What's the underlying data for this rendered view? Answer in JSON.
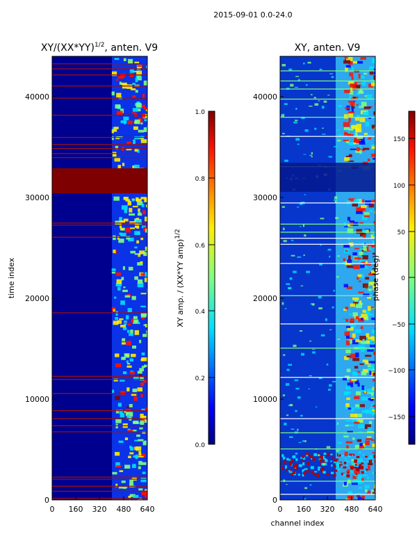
{
  "figure": {
    "suptitle": "2015-09-01 0.0-24.0"
  },
  "chart_data": [
    {
      "type": "heatmap",
      "title": "XY/(XX*YY)",
      "title_exponent": "1/2",
      "title_suffix": ", anten. V9",
      "xlabel": "",
      "ylabel": "time index",
      "xlim": [
        0,
        640
      ],
      "ylim": [
        0,
        44000
      ],
      "xticks": [
        0,
        160,
        320,
        480,
        640
      ],
      "yticks": [
        0,
        10000,
        20000,
        30000,
        40000
      ],
      "colorbar": {
        "label": "XY amp. / (XX*YY amp)",
        "label_exponent": "1/2",
        "range": [
          0.0,
          1.0
        ],
        "ticks": [
          "0.0",
          "0.2",
          "0.4",
          "0.6",
          "0.8",
          "1.0"
        ],
        "tick_values": [
          0.0,
          0.2,
          0.4,
          0.6,
          0.8,
          1.0
        ]
      },
      "regions": [
        {
          "name": "saturated block",
          "time_range": [
            30200,
            32900
          ],
          "value": 1.0
        },
        {
          "name": "high-amplitude band",
          "channel_range": [
            400,
            640
          ],
          "value_range": [
            0.3,
            0.9
          ]
        }
      ]
    },
    {
      "type": "heatmap",
      "title": "XY, anten. V9",
      "xlabel": "channel index",
      "ylabel": "",
      "xlim": [
        0,
        640
      ],
      "ylim": [
        0,
        44000
      ],
      "xticks": [
        0,
        160,
        320,
        480,
        640
      ],
      "yticks": [
        0,
        10000,
        20000,
        30000,
        40000
      ],
      "colorbar": {
        "label": "phase (deg)",
        "range": [
          -180,
          180
        ],
        "ticks": [
          "−150",
          "−100",
          "−50",
          "0",
          "50",
          "100",
          "150"
        ],
        "tick_values": [
          -150,
          -100,
          -50,
          0,
          50,
          100,
          150
        ]
      },
      "regions": [
        {
          "name": "phase-wrapped band",
          "channel_range": [
            400,
            640
          ],
          "value_range": [
            -180,
            180
          ]
        }
      ]
    }
  ]
}
